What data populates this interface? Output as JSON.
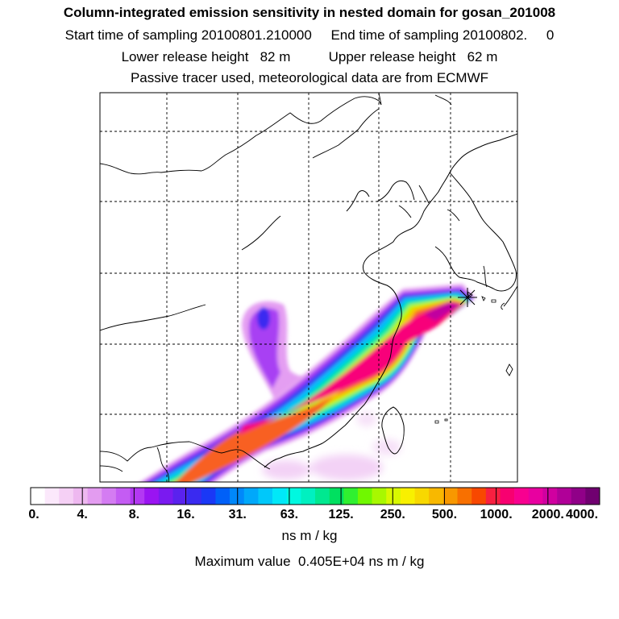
{
  "header": {
    "title": "Column-integrated emission sensitivity in nested domain for gosan_201008",
    "sampling_line": "Start time of sampling 20100801.210000     End time of sampling 20100802.     0",
    "release_line": "Lower release height   82 m          Upper release height   62 m",
    "tracer_line": "Passive tracer used, meteorological data are from ECMWF"
  },
  "colorbar": {
    "tick_labels": [
      "0.",
      "4.",
      "8.",
      "16.",
      "31.",
      "63.",
      "125.",
      "250.",
      "500.",
      "1000.",
      "2000.",
      "4000."
    ],
    "colors": [
      "#ffffff",
      "#fbe8fb",
      "#f5d0f5",
      "#eeb8f0",
      "#e39cf0",
      "#d47cf2",
      "#c45cf3",
      "#b338f3",
      "#9a14f2",
      "#7a1af0",
      "#5a22ee",
      "#3a2af0",
      "#1a38f6",
      "#0060f8",
      "#0088fa",
      "#00a8fa",
      "#00c8fa",
      "#00e8f8",
      "#00f8e0",
      "#00f0c0",
      "#00e890",
      "#00e060",
      "#30f030",
      "#70f800",
      "#a8f800",
      "#d8f800",
      "#f8f000",
      "#f8d800",
      "#f8b800",
      "#f89800",
      "#f87000",
      "#f84800",
      "#f82040",
      "#f80070",
      "#f80090",
      "#e800a0",
      "#d000a0",
      "#b00098",
      "#900088",
      "#700070"
    ],
    "unit": "ns m / kg",
    "maximum_text": "Maximum value  0.405E+04 ns m / kg"
  }
}
